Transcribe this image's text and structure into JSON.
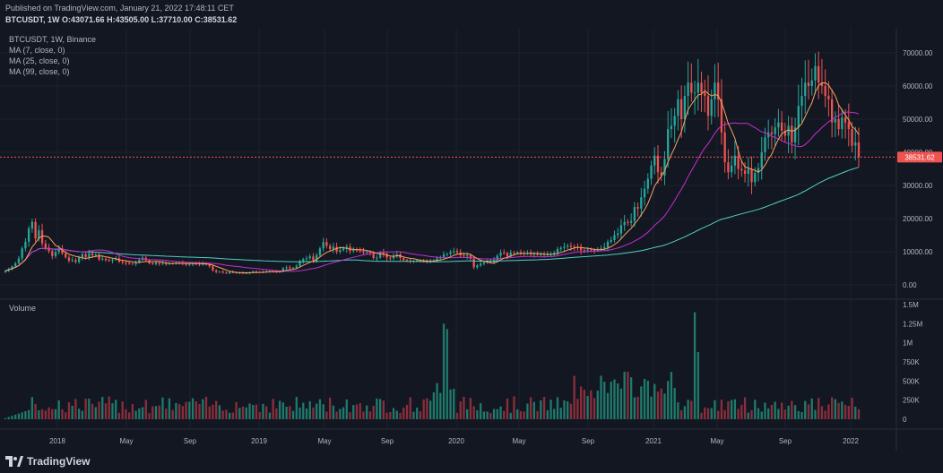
{
  "header": {
    "published": "Published on TradingView.com, January 21, 2022 17:48:11 CET",
    "symbol_line": "BTCUSDT, 1W",
    "o_label": "O:",
    "o_val": "43071.66",
    "h_label": "H:",
    "h_val": "43505.00",
    "l_label": "L:",
    "l_val": "37710.00",
    "c_label": "C:",
    "c_val": "38531.62"
  },
  "legend": {
    "title": "BTCUSDT, 1W, Binance",
    "ma7": "MA (7, close, 0)",
    "ma25": "MA (25, close, 0)",
    "ma99": "MA (99, close, 0)"
  },
  "volume_label": "Volume",
  "last_price_label": "38531.62",
  "footer_brand": "TradingView",
  "colors": {
    "up": "#26a69a",
    "down": "#ef5350",
    "vol_up": "#1f7a6c",
    "vol_down": "#8a2e3b",
    "ma7": "#f7a35c",
    "ma25": "#c42fd0",
    "ma99": "#4ed1c0",
    "price_tag": "#ef5350"
  },
  "chart_data": {
    "type": "candlestick",
    "price_axis_ticks": [
      "70000.00",
      "60000.00",
      "50000.00",
      "40000.00",
      "30000.00",
      "20000.00",
      "10000.00",
      "0.00"
    ],
    "volume_axis_ticks": [
      "1.5M",
      "1.25M",
      "1M",
      "750K",
      "500K",
      "250K",
      "0"
    ],
    "x_ticks": [
      "2018",
      "May",
      "Sep",
      "2019",
      "May",
      "Sep",
      "2020",
      "May",
      "Sep",
      "2021",
      "May",
      "Sep",
      "2022"
    ],
    "price_ylim": [
      0,
      70000
    ],
    "volume_ylim": [
      0,
      1500000
    ],
    "last_price": 38531.62,
    "price_series": [
      4200,
      4900,
      5600,
      6500,
      8000,
      11000,
      13000,
      17000,
      19000,
      14000,
      16500,
      12500,
      11200,
      10200,
      8700,
      9900,
      11000,
      9500,
      8300,
      7300,
      7500,
      6900,
      8200,
      9300,
      8400,
      9500,
      8900,
      9200,
      7700,
      7900,
      7500,
      7300,
      7600,
      8000,
      7000,
      6800,
      6600,
      6400,
      6300,
      6700,
      7600,
      8200,
      7400,
      6500,
      6300,
      6800,
      6400,
      6550,
      6300,
      6500,
      6400,
      6700,
      6600,
      6400,
      6300,
      6350,
      6450,
      6400,
      6300,
      6380,
      6100,
      5600,
      4400,
      3900,
      4000,
      3700,
      3450,
      3900,
      3800,
      3600,
      3700,
      3500,
      3550,
      3700,
      4100,
      3900,
      3800,
      4000,
      3950,
      4150,
      4100,
      3900,
      4000,
      5000,
      5300,
      5100,
      5200,
      5700,
      7200,
      7800,
      8000,
      8600,
      7300,
      9000,
      11000,
      12900,
      11800,
      10800,
      11500,
      10000,
      10500,
      11000,
      11500,
      10200,
      10600,
      10400,
      10200,
      9800,
      10000,
      9700,
      8100,
      8200,
      9700,
      9300,
      8200,
      8000,
      8800,
      9200,
      8100,
      7500,
      7300,
      7100,
      7200,
      7400,
      7300,
      7200,
      7000,
      7200,
      7300,
      8000,
      8400,
      9200,
      9300,
      9900,
      10200,
      9800,
      8900,
      8700,
      8900,
      7900,
      5300,
      5900,
      6400,
      6800,
      7100,
      6900,
      7500,
      8800,
      9700,
      9600,
      8600,
      9700,
      9500,
      9800,
      9700,
      9400,
      9700,
      9200,
      9300,
      9100,
      9300,
      9100,
      9200,
      9200,
      9700,
      10800,
      11200,
      11500,
      11800,
      11500,
      11400,
      11300,
      10400,
      10300,
      10700,
      10500,
      10400,
      10800,
      11000,
      11400,
      13000,
      13500,
      15000,
      15500,
      18000,
      19000,
      18700,
      19300,
      23500,
      23000,
      26400,
      29000,
      32000,
      36000,
      39000,
      34000,
      33000,
      38000,
      47000,
      48000,
      51000,
      56000,
      50000,
      57000,
      61000,
      58000,
      58000,
      61000,
      58000,
      57000,
      51000,
      56000,
      61000,
      56000,
      46000,
      37000,
      34000,
      36000,
      39000,
      35000,
      34500,
      33500,
      35000,
      31000,
      33800,
      35300,
      40000,
      44500,
      46000,
      45500,
      47500,
      49000,
      46500,
      45000,
      48000,
      43000,
      47500,
      54000,
      57000,
      61000,
      60000,
      61700,
      66000,
      61000,
      60000,
      57000,
      56000,
      49000,
      50000,
      47000,
      50500,
      49000,
      47000,
      42000,
      43000,
      38531
    ]
  }
}
